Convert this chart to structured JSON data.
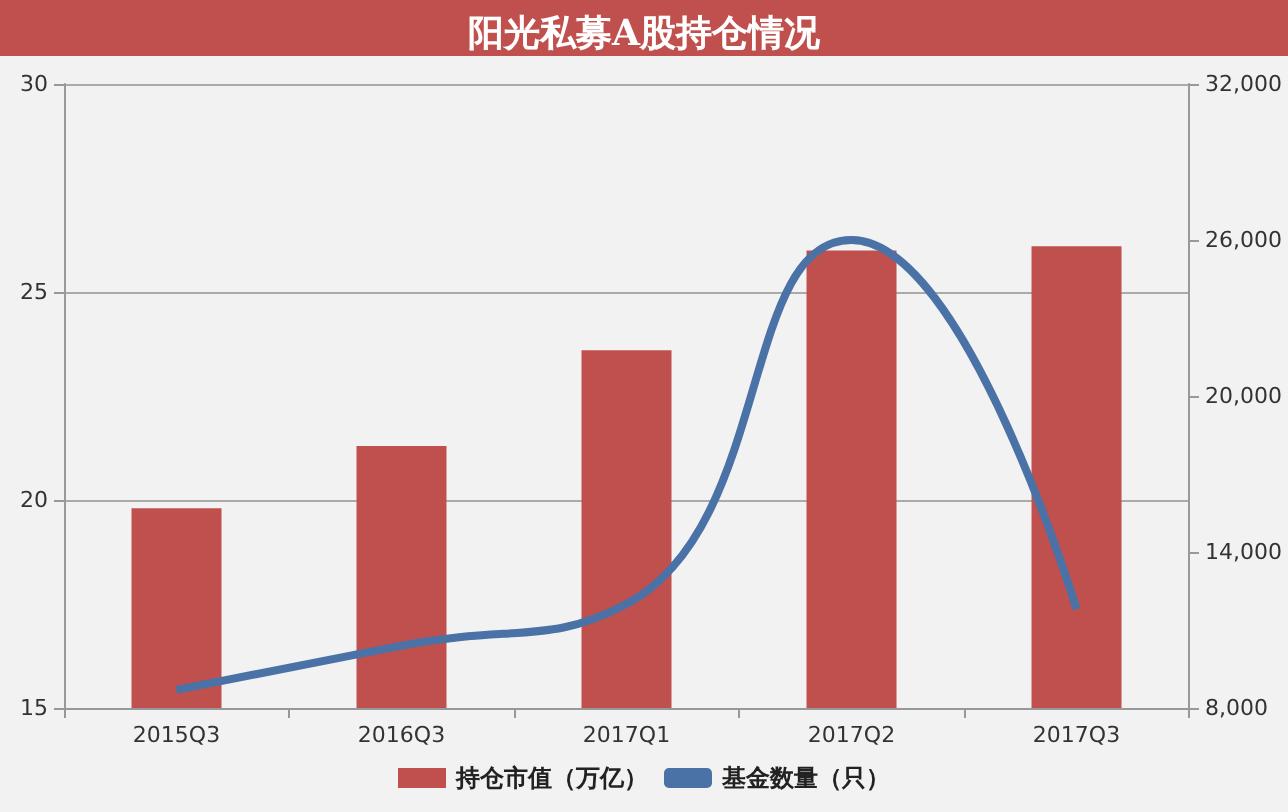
{
  "chart_data": {
    "type": "bar",
    "title": "阳光私募A股持仓情况",
    "categories": [
      "2015Q3",
      "2016Q3",
      "2017Q1",
      "2017Q2",
      "2017Q3"
    ],
    "series": [
      {
        "name": "持仓市值（万亿）",
        "color": "#c0504d",
        "values": [
          19.8,
          21.3,
          23.6,
          26.0,
          26.1
        ]
      },
      {
        "name": "基金数量（只）",
        "type": "line",
        "axis": "y2",
        "color": "#4a72a6",
        "values": [
          8700,
          10400,
          12000,
          26000,
          11800
        ]
      }
    ],
    "ylim": [
      15,
      30
    ],
    "yticks": [
      15,
      20,
      25,
      30
    ],
    "y2lim": [
      8000,
      32000
    ],
    "y2ticks": [
      {
        "value": 8000,
        "label": "8,000"
      },
      {
        "value": 14000,
        "label": "14,000"
      },
      {
        "value": 20000,
        "label": "20,000"
      },
      {
        "value": 26000,
        "label": "26,000"
      },
      {
        "value": 32000,
        "label": "32,000"
      }
    ],
    "grid": "y",
    "legend": "bottom",
    "marker": "none"
  }
}
